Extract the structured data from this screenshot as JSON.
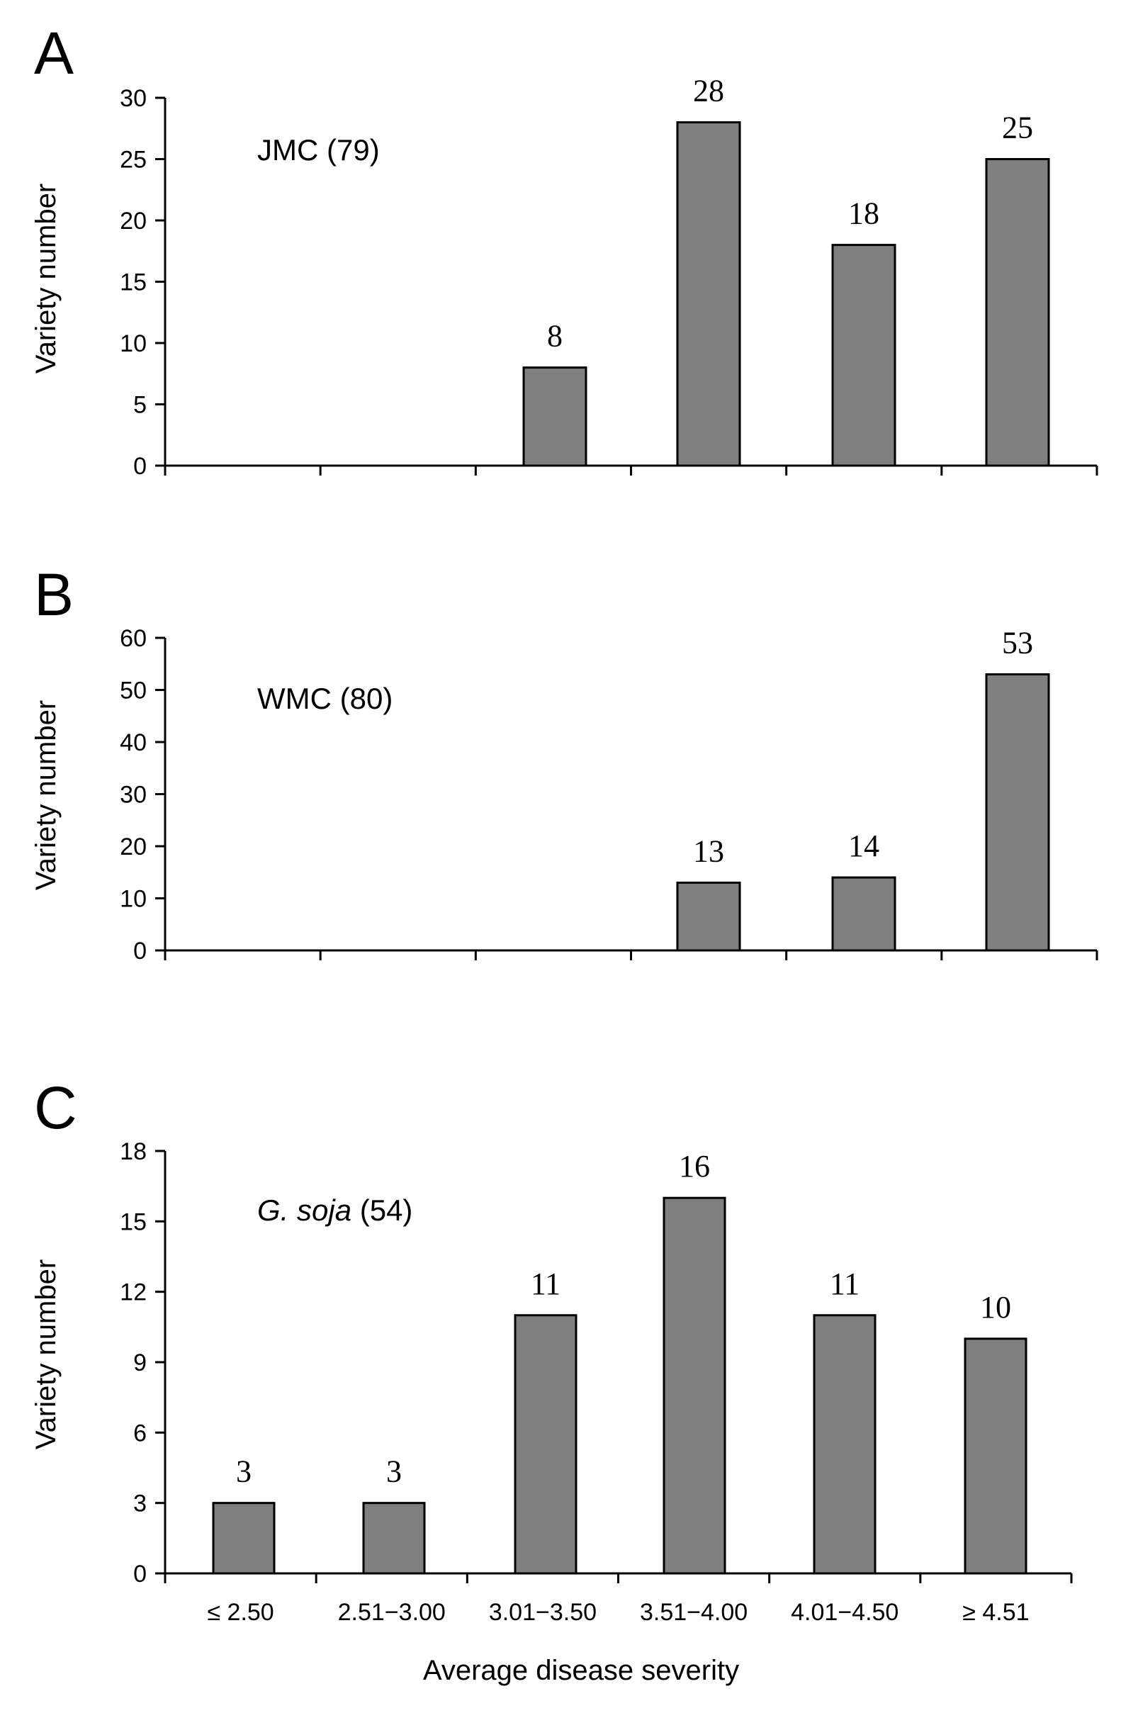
{
  "colors": {
    "bar": "#7f7f7f",
    "axis": "#000000"
  },
  "xlabel": "Average disease severity",
  "chart_data": [
    {
      "type": "bar",
      "panel": "A",
      "annotation": "JMC (79)",
      "annotation_italic": "",
      "annotation_rest": "",
      "categories": [
        "≤ 2.50",
        "2.51−3.00",
        "3.01−3.50",
        "3.51−4.00",
        "4.01−4.50",
        "≥ 4.51"
      ],
      "values": [
        0,
        0,
        8,
        28,
        18,
        25
      ],
      "data_labels": [
        "",
        "",
        "8",
        "28",
        "18",
        "25"
      ],
      "ylabel": "Variety number",
      "ylim": [
        0,
        30
      ],
      "yticks": [
        0,
        5,
        10,
        15,
        20,
        25,
        30
      ],
      "show_category_labels": false,
      "grid": false
    },
    {
      "type": "bar",
      "panel": "B",
      "annotation": "WMC (80)",
      "annotation_italic": "",
      "annotation_rest": "",
      "categories": [
        "≤ 2.50",
        "2.51−3.00",
        "3.01−3.50",
        "3.51−4.00",
        "4.01−4.50",
        "≥ 4.51"
      ],
      "values": [
        0,
        0,
        0,
        13,
        14,
        53
      ],
      "data_labels": [
        "",
        "",
        "",
        "13",
        "14",
        "53"
      ],
      "ylabel": "Variety number",
      "ylim": [
        0,
        60
      ],
      "yticks": [
        0,
        10,
        20,
        30,
        40,
        50,
        60
      ],
      "show_category_labels": false,
      "grid": false
    },
    {
      "type": "bar",
      "panel": "C",
      "annotation": "",
      "annotation_italic": "G. soja",
      "annotation_rest": " (54)",
      "categories": [
        "≤ 2.50",
        "2.51−3.00",
        "3.01−3.50",
        "3.51−4.00",
        "4.01−4.50",
        "≥ 4.51"
      ],
      "values": [
        3,
        3,
        11,
        16,
        11,
        10
      ],
      "data_labels": [
        "3",
        "3",
        "11",
        "16",
        "11",
        "10"
      ],
      "ylabel": "Variety number",
      "ylim": [
        0,
        18
      ],
      "yticks": [
        0,
        3,
        6,
        9,
        12,
        15,
        18
      ],
      "show_category_labels": true,
      "grid": false
    }
  ]
}
